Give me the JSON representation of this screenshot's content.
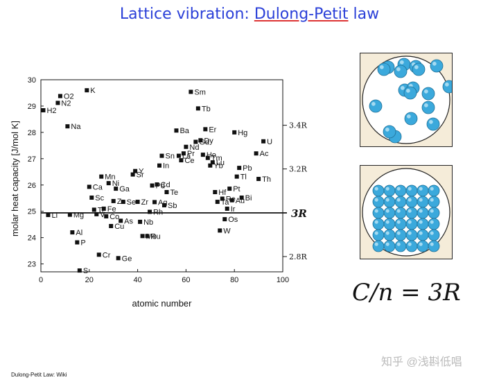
{
  "slide": {
    "title_part1": "Lattice vibration: ",
    "title_part2": "Dulong-Petit",
    "title_part3": " law",
    "formula": "C/n = 3R",
    "caption": "Dulong-Petit Law: Wiki",
    "watermark": "知乎 @浅斟低唱"
  },
  "chart_data": {
    "type": "scatter",
    "xlabel": "atomic number",
    "ylabel": "molar heat capacity   [J/mol K]",
    "xlim": [
      0,
      100
    ],
    "ylim": [
      22.7,
      30
    ],
    "xticks": [
      0,
      20,
      40,
      60,
      80,
      100
    ],
    "yticks": [
      23,
      24,
      25,
      26,
      27,
      28,
      29,
      30
    ],
    "reference_line": {
      "y": 24.94,
      "label": "3R"
    },
    "right_ticks": [
      {
        "y": 28.27,
        "label": "3.4R"
      },
      {
        "y": 26.61,
        "label": "3.2R"
      },
      {
        "y": 23.28,
        "label": "2.8R"
      }
    ],
    "points": [
      {
        "label": "Li",
        "x": 3,
        "y": 24.86
      },
      {
        "label": "O2",
        "x": 8,
        "y": 29.38
      },
      {
        "label": "N2",
        "x": 7,
        "y": 29.12
      },
      {
        "label": "H2",
        "x": 1,
        "y": 28.84
      },
      {
        "label": "Na",
        "x": 11,
        "y": 28.23
      },
      {
        "label": "K",
        "x": 19,
        "y": 29.6
      },
      {
        "label": "Mg",
        "x": 12,
        "y": 24.87
      },
      {
        "label": "Al",
        "x": 13,
        "y": 24.2
      },
      {
        "label": "P",
        "x": 15,
        "y": 23.82
      },
      {
        "label": "S",
        "x": 16,
        "y": 22.75
      },
      {
        "label": "Mn",
        "x": 25,
        "y": 26.32
      },
      {
        "label": "Ca",
        "x": 20,
        "y": 25.93
      },
      {
        "label": "Sc",
        "x": 21,
        "y": 25.52
      },
      {
        "label": "Ti",
        "x": 22,
        "y": 25.06
      },
      {
        "label": "V",
        "x": 23,
        "y": 24.89
      },
      {
        "label": "Cr",
        "x": 24,
        "y": 23.35
      },
      {
        "label": "Fe",
        "x": 26,
        "y": 25.1
      },
      {
        "label": "Co",
        "x": 27,
        "y": 24.81
      },
      {
        "label": "Ni",
        "x": 28,
        "y": 26.07
      },
      {
        "label": "Cu",
        "x": 29,
        "y": 24.44
      },
      {
        "label": "Zn",
        "x": 30,
        "y": 25.39
      },
      {
        "label": "Ga",
        "x": 31,
        "y": 25.86
      },
      {
        "label": "Ge",
        "x": 32,
        "y": 23.22
      },
      {
        "label": "As",
        "x": 33,
        "y": 24.64
      },
      {
        "label": "Se",
        "x": 34,
        "y": 25.36
      },
      {
        "label": "Y",
        "x": 39,
        "y": 26.53
      },
      {
        "label": "Sr",
        "x": 38,
        "y": 26.4
      },
      {
        "label": "Zr",
        "x": 40,
        "y": 25.36
      },
      {
        "label": "Nb",
        "x": 41,
        "y": 24.6
      },
      {
        "label": "Mo",
        "x": 42,
        "y": 24.06
      },
      {
        "label": "Ru",
        "x": 44,
        "y": 24.06
      },
      {
        "label": "Rh",
        "x": 45,
        "y": 24.98
      },
      {
        "label": "Pd",
        "x": 46,
        "y": 25.98
      },
      {
        "label": "Ag",
        "x": 47,
        "y": 25.35
      },
      {
        "label": "Cd",
        "x": 48,
        "y": 26.02
      },
      {
        "label": "In",
        "x": 49,
        "y": 26.74
      },
      {
        "label": "Sn",
        "x": 50,
        "y": 27.11
      },
      {
        "label": "Sb",
        "x": 51,
        "y": 25.23
      },
      {
        "label": "Te",
        "x": 52,
        "y": 25.73
      },
      {
        "label": "Ba",
        "x": 56,
        "y": 28.07
      },
      {
        "label": "La",
        "x": 57,
        "y": 27.11
      },
      {
        "label": "Ce",
        "x": 58,
        "y": 26.94
      },
      {
        "label": "Pr",
        "x": 59,
        "y": 27.2
      },
      {
        "label": "Nd",
        "x": 60,
        "y": 27.45
      },
      {
        "label": "Sm",
        "x": 62,
        "y": 29.54
      },
      {
        "label": "Tb",
        "x": 65,
        "y": 28.91
      },
      {
        "label": "Dy",
        "x": 66,
        "y": 27.7
      },
      {
        "label": "Gd",
        "x": 64,
        "y": 27.64
      },
      {
        "label": "Er",
        "x": 68,
        "y": 28.12
      },
      {
        "label": "Ho",
        "x": 67,
        "y": 27.15
      },
      {
        "label": "Tm",
        "x": 69,
        "y": 27.03
      },
      {
        "label": "Lu",
        "x": 71,
        "y": 26.86
      },
      {
        "label": "Yb",
        "x": 70,
        "y": 26.74
      },
      {
        "label": "Hf",
        "x": 72,
        "y": 25.73
      },
      {
        "label": "Ta",
        "x": 73,
        "y": 25.36
      },
      {
        "label": "W",
        "x": 74,
        "y": 24.27
      },
      {
        "label": "Re",
        "x": 75,
        "y": 25.48
      },
      {
        "label": "Os",
        "x": 76,
        "y": 24.7
      },
      {
        "label": "Ir",
        "x": 77,
        "y": 25.1
      },
      {
        "label": "Pt",
        "x": 78,
        "y": 25.86
      },
      {
        "label": "Au",
        "x": 79,
        "y": 25.42
      },
      {
        "label": "Hg",
        "x": 80,
        "y": 28.0
      },
      {
        "label": "Tl",
        "x": 81,
        "y": 26.32
      },
      {
        "label": "Pb",
        "x": 82,
        "y": 26.65
      },
      {
        "label": "Bi",
        "x": 83,
        "y": 25.52
      },
      {
        "label": "Ac",
        "x": 89,
        "y": 27.2
      },
      {
        "label": "Th",
        "x": 90,
        "y": 26.23
      },
      {
        "label": "U",
        "x": 92,
        "y": 27.66
      }
    ]
  },
  "colors": {
    "title": "#2a3fd8",
    "box_fill": "#f5ecd9",
    "circle_fill": "#ffffff",
    "sphere": "#3ba9dc"
  }
}
